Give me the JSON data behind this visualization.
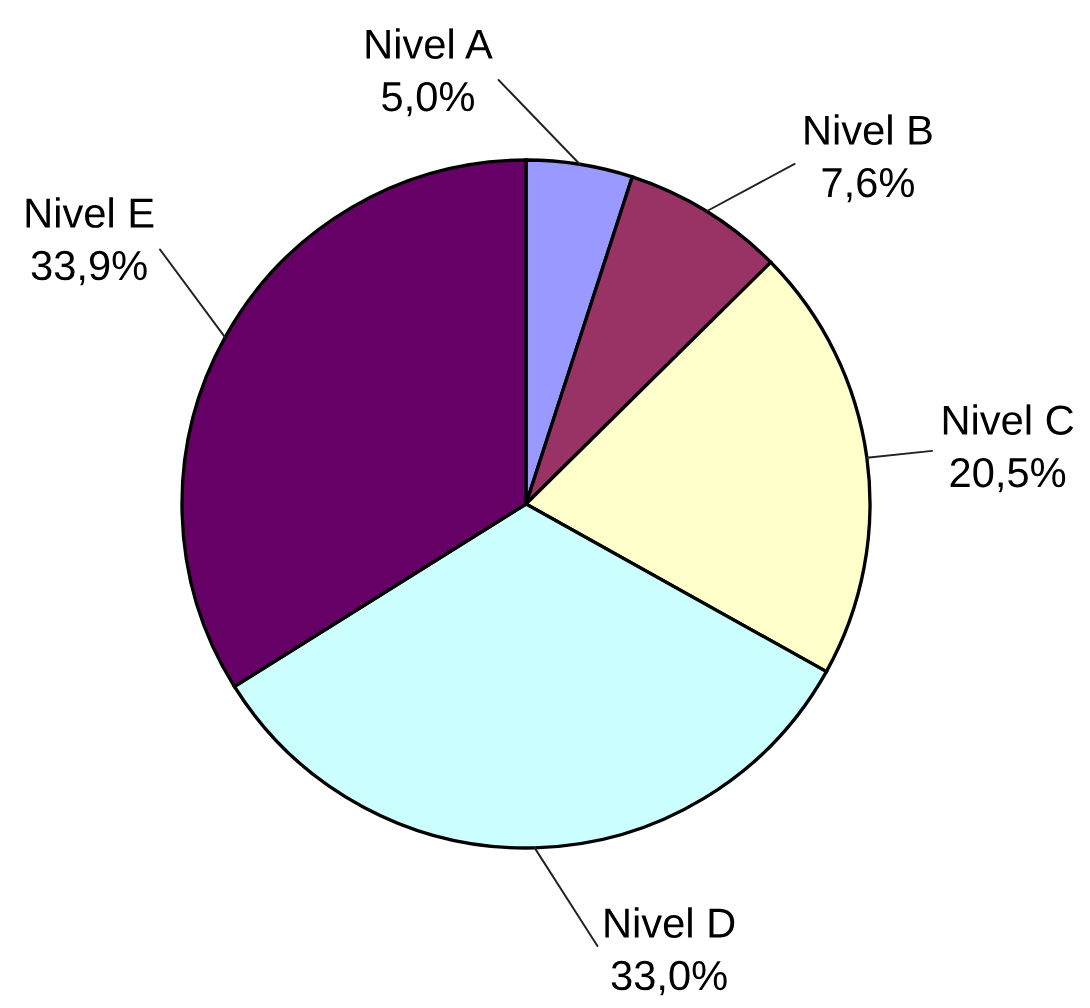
{
  "chart_data": {
    "type": "pie",
    "categories": [
      "Nivel A",
      "Nivel B",
      "Nivel C",
      "Nivel D",
      "Nivel E"
    ],
    "values": [
      5.0,
      7.6,
      20.5,
      33.0,
      33.9
    ],
    "colors": [
      "#9999ff",
      "#993366",
      "#ffffcc",
      "#ccffff",
      "#660066"
    ],
    "value_labels": [
      "5,0%",
      "7,6%",
      "20,5%",
      "33,0%",
      "33,9%"
    ]
  }
}
